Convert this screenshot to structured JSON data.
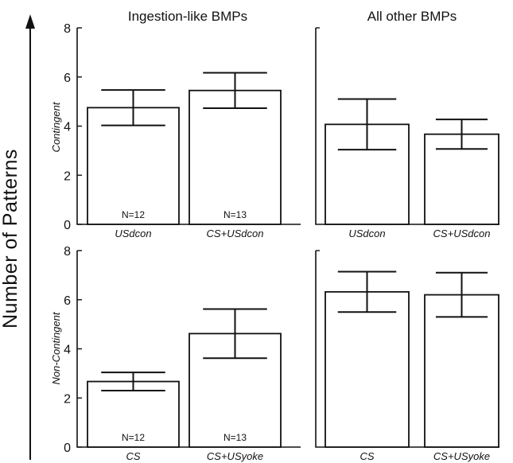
{
  "figure": {
    "y_axis_label": "Number of Patterns",
    "column_titles": [
      "Ingestion-like BMPs",
      "All other BMPs"
    ],
    "row_labels": [
      "Contingent",
      "Non-Contingent"
    ]
  },
  "chart_data": [
    {
      "type": "bar",
      "panel": "Contingent / Ingestion-like BMPs",
      "categories": [
        "USdcon",
        "CS+USdcon"
      ],
      "values": [
        4.75,
        5.45
      ],
      "error": [
        0.72,
        0.72
      ],
      "n_labels": [
        "N=12",
        "N=13"
      ],
      "ylim": [
        0,
        8
      ],
      "yticks": [
        0,
        2,
        4,
        6,
        8
      ]
    },
    {
      "type": "bar",
      "panel": "Contingent / All other BMPs",
      "categories": [
        "USdcon",
        "CS+USdcon"
      ],
      "values": [
        4.07,
        3.67
      ],
      "error": [
        1.03,
        0.6
      ],
      "n_labels": [],
      "ylim": [
        0,
        8
      ],
      "yticks": []
    },
    {
      "type": "bar",
      "panel": "Non-Contingent / Ingestion-like BMPs",
      "categories": [
        "CS",
        "CS+USyoke"
      ],
      "values": [
        2.67,
        4.62
      ],
      "error": [
        0.37,
        1.0
      ],
      "n_labels": [
        "N=12",
        "N=13"
      ],
      "ylim": [
        0,
        8
      ],
      "yticks": [
        0,
        2,
        4,
        6,
        8
      ]
    },
    {
      "type": "bar",
      "panel": "Non-Contingent / All other BMPs",
      "categories": [
        "CS",
        "CS+USyoke"
      ],
      "values": [
        6.32,
        6.2
      ],
      "error": [
        0.82,
        0.9
      ],
      "n_labels": [],
      "ylim": [
        0,
        8
      ],
      "yticks": []
    }
  ]
}
